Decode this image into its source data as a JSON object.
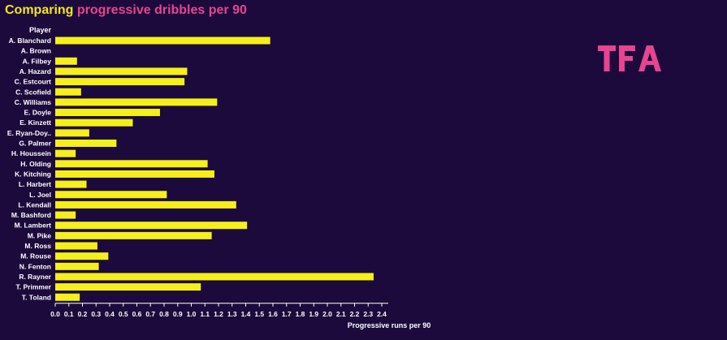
{
  "title": {
    "part1": "Comparing",
    "part2": "progressive dribbles per 90"
  },
  "logo": {
    "text": "TFA",
    "color": "#e8448f"
  },
  "colors": {
    "background": "#1c0a3c",
    "bar": "#f5ef1a",
    "text": "#ffffff",
    "title_accent": "#e8448f",
    "title_main": "#f2e61c"
  },
  "chart_data": {
    "type": "bar",
    "orientation": "horizontal",
    "xlabel": "Progressive runs per 90",
    "ylabel": "Player",
    "xlim": [
      0,
      2.4
    ],
    "xticks": [
      "0.0",
      "0.1",
      "0.2",
      "0.3",
      "0.4",
      "0.5",
      "0.6",
      "0.7",
      "0.8",
      "0.9",
      "1.0",
      "1.1",
      "1.2",
      "1.3",
      "1.4",
      "1.5",
      "1.6",
      "1.7",
      "1.8",
      "1.9",
      "2.0",
      "2.1",
      "2.2",
      "2.3",
      "2.4"
    ],
    "grid": false,
    "categories": [
      "A. Blanchard",
      "A. Brown",
      "A. Filbey",
      "A. Hazard",
      "C. Estcourt",
      "C. Scofield",
      "C. Williams",
      "E. Doyle",
      "E. Kinzett",
      "E. Ryan-Doy..",
      "G. Palmer",
      "H. Houssein",
      "H. Olding",
      "K. Kitching",
      "L. Harbert",
      "L. Joel",
      "L. Kendall",
      "M. Bashford",
      "M. Lambert",
      "M. Pike",
      "M. Ross",
      "M. Rouse",
      "N. Fenton",
      "R. Rayner",
      "T. Primmer",
      "T. Toland"
    ],
    "values": [
      1.58,
      0.0,
      0.16,
      0.97,
      0.95,
      0.19,
      1.19,
      0.77,
      0.57,
      0.25,
      0.45,
      0.15,
      1.12,
      1.17,
      0.23,
      0.82,
      1.33,
      0.15,
      1.41,
      1.15,
      0.31,
      0.39,
      0.32,
      2.34,
      1.07,
      0.18
    ]
  }
}
